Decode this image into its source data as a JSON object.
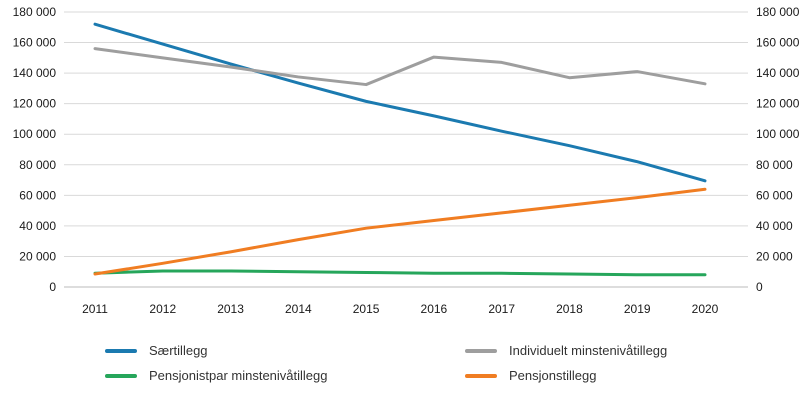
{
  "chart_data": {
    "type": "line",
    "x": [
      2011,
      2012,
      2013,
      2014,
      2015,
      2016,
      2017,
      2018,
      2019,
      2020
    ],
    "y_ticks": [
      0,
      20000,
      40000,
      60000,
      80000,
      100000,
      120000,
      140000,
      160000,
      180000
    ],
    "ylim": [
      0,
      180000
    ],
    "grid": true,
    "legend_position": "bottom",
    "axis_tick_labels": [
      "0",
      "20 000",
      "40 000",
      "60 000",
      "80 000",
      "100 000",
      "120 000",
      "140 000",
      "160 000",
      "180 000"
    ],
    "series": [
      {
        "name": "Særtillegg",
        "color": "#1b7ab0",
        "values": [
          172000,
          159000,
          146000,
          133500,
          121500,
          112000,
          102000,
          92500,
          82000,
          69500
        ]
      },
      {
        "name": "Individuelt minstenivåtillegg",
        "color": "#9e9e9e",
        "values": [
          156000,
          150000,
          144000,
          137500,
          132500,
          150500,
          147000,
          137000,
          141000,
          133000
        ]
      },
      {
        "name": "Pensjonistpar minstenivåtillegg",
        "color": "#26a65b",
        "values": [
          9000,
          10500,
          10500,
          10000,
          9500,
          9000,
          9000,
          8500,
          8000,
          8000
        ]
      },
      {
        "name": "Pensjonstillegg",
        "color": "#f07d22",
        "values": [
          8500,
          15500,
          23000,
          31000,
          38500,
          43500,
          48500,
          53500,
          58500,
          64000
        ]
      }
    ],
    "colors": {
      "gridline": "#d9d9d9",
      "axis_line": "#bbbbbb",
      "tick_text": "#1a1a1a"
    }
  }
}
